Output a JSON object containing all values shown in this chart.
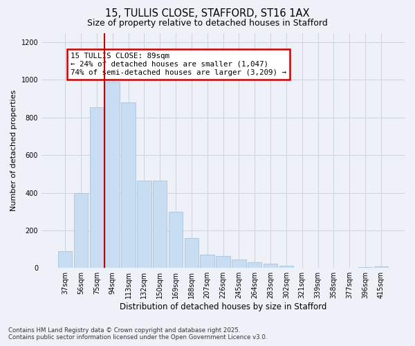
{
  "title1": "15, TULLIS CLOSE, STAFFORD, ST16 1AX",
  "title2": "Size of property relative to detached houses in Stafford",
  "xlabel": "Distribution of detached houses by size in Stafford",
  "ylabel": "Number of detached properties",
  "bar_labels": [
    "37sqm",
    "56sqm",
    "75sqm",
    "94sqm",
    "113sqm",
    "132sqm",
    "150sqm",
    "169sqm",
    "188sqm",
    "207sqm",
    "226sqm",
    "245sqm",
    "264sqm",
    "283sqm",
    "302sqm",
    "321sqm",
    "339sqm",
    "358sqm",
    "377sqm",
    "396sqm",
    "415sqm"
  ],
  "bar_values": [
    90,
    400,
    855,
    990,
    880,
    465,
    465,
    300,
    160,
    70,
    65,
    45,
    30,
    22,
    10,
    2,
    0,
    0,
    0,
    5,
    8
  ],
  "bar_color": "#c9ddf2",
  "bar_edge_color": "#a8c4e0",
  "vline_color": "#cc0000",
  "annotation_title": "15 TULLIS CLOSE: 89sqm",
  "annotation_line2": "← 24% of detached houses are smaller (1,047)",
  "annotation_line3": "74% of semi-detached houses are larger (3,209) →",
  "annotation_box_color": "#cc0000",
  "annotation_bg": "#ffffff",
  "ylim": [
    0,
    1250
  ],
  "yticks": [
    0,
    200,
    400,
    600,
    800,
    1000,
    1200
  ],
  "grid_color": "#ccd4e0",
  "bg_color": "#eef2f8",
  "footer1": "Contains HM Land Registry data © Crown copyright and database right 2025.",
  "footer2": "Contains public sector information licensed under the Open Government Licence v3.0."
}
